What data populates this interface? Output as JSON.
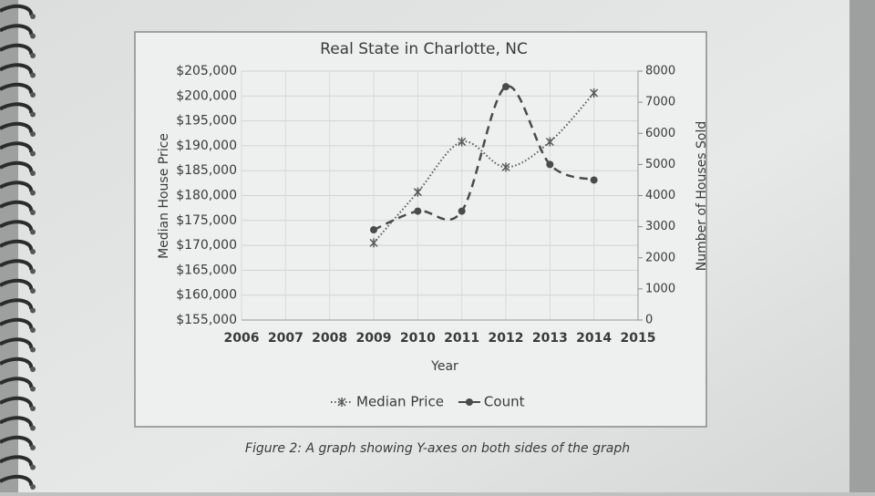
{
  "chart_data": {
    "type": "line",
    "title": "Real State in Charlotte, NC",
    "x_label": "Year",
    "y_label": "Median House Price",
    "y2_label": "Number of Houses Sold",
    "x": [
      2009,
      2010,
      2011,
      2012,
      2013,
      2014
    ],
    "xlim": [
      2006,
      2015
    ],
    "xticks": [
      2006,
      2007,
      2008,
      2009,
      2010,
      2011,
      2012,
      2013,
      2014,
      2015
    ],
    "ylim": [
      155000,
      205000
    ],
    "yticks": [
      {
        "value": 155000,
        "label": "$155,000"
      },
      {
        "value": 160000,
        "label": "$160,000"
      },
      {
        "value": 165000,
        "label": "$165,000"
      },
      {
        "value": 170000,
        "label": "$170,000"
      },
      {
        "value": 175000,
        "label": "$175,000"
      },
      {
        "value": 180000,
        "label": "$180,000"
      },
      {
        "value": 185000,
        "label": "$185,000"
      },
      {
        "value": 190000,
        "label": "$190,000"
      },
      {
        "value": 195000,
        "label": "$195,000"
      },
      {
        "value": 200000,
        "label": "$200,000"
      },
      {
        "value": 205000,
        "label": "$205,000"
      }
    ],
    "y2lim": [
      0,
      8000
    ],
    "y2ticks": [
      0,
      1000,
      2000,
      3000,
      4000,
      5000,
      6000,
      7000,
      8000
    ],
    "grid": true,
    "legend": "bottom",
    "series": [
      {
        "name": "Median Price",
        "color": "#5a5a5a",
        "line_style": "dotted",
        "marker": "x",
        "values": [
          170500,
          180700,
          190800,
          185700,
          190800,
          200600
        ]
      },
      {
        "name": "Count",
        "color": "#4a4a4a",
        "line_style": "dashed",
        "marker": "circle",
        "axis": "y2",
        "values": [
          2900,
          3500,
          3500,
          7500,
          5000,
          4500
        ]
      }
    ]
  },
  "caption": "Figure 2: A graph showing Y-axes on both sides of the graph"
}
